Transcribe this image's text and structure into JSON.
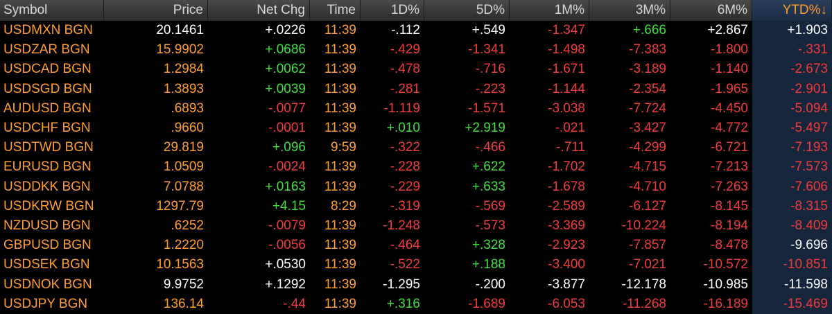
{
  "table": {
    "header": [
      "Symbol",
      "Price",
      "Net Chg",
      "Time",
      "1D%",
      "5D%",
      "1M%",
      "3M%",
      "6M%",
      "YTD%↓"
    ],
    "header_colors": [
      "#d8d8d8",
      "#d8d8d8",
      "#d8d8d8",
      "#d8d8d8",
      "#d8d8d8",
      "#d8d8d8",
      "#d8d8d8",
      "#d8d8d8",
      "#d8d8d8",
      "#ff9d2e"
    ],
    "rows": [
      [
        "USDMXN BGN",
        "20.1461",
        "+.0226",
        "11:39",
        "-.112",
        "+.549",
        "-1.347",
        "+.666",
        "+2.867",
        "+1.903"
      ],
      [
        "USDZAR BGN",
        "15.9902",
        "+.0686",
        "11:39",
        "-.429",
        "-1.341",
        "-1.498",
        "-7.383",
        "-1.800",
        "-.331"
      ],
      [
        "USDCAD BGN",
        "1.2984",
        "+.0062",
        "11:39",
        "-.478",
        "-.716",
        "-1.671",
        "-3.189",
        "-1.140",
        "-2.673"
      ],
      [
        "USDSGD BGN",
        "1.3893",
        "+.0039",
        "11:39",
        "-.281",
        "-.223",
        "-1.144",
        "-2.354",
        "-1.965",
        "-2.901"
      ],
      [
        "AUDUSD BGN",
        ".6893",
        "-.0077",
        "11:39",
        "-1.119",
        "-1.571",
        "-3.038",
        "-7.724",
        "-4.450",
        "-5.094"
      ],
      [
        "USDCHF BGN",
        ".9660",
        "-.0001",
        "11:39",
        "+.010",
        "+2.919",
        "-.021",
        "-3.427",
        "-4.772",
        "-5.497"
      ],
      [
        "USDTWD BGN",
        "29.819",
        "+.096",
        "9:59",
        "-.322",
        "-.466",
        "-.711",
        "-4.299",
        "-6.721",
        "-7.193"
      ],
      [
        "EURUSD BGN",
        "1.0509",
        "-.0024",
        "11:39",
        "-.228",
        "+.622",
        "-1.702",
        "-4.715",
        "-7.213",
        "-7.573"
      ],
      [
        "USDDKK BGN",
        "7.0788",
        "+.0163",
        "11:39",
        "-.229",
        "+.633",
        "-1.678",
        "-4.710",
        "-7.263",
        "-7.606"
      ],
      [
        "USDKRW BGN",
        "1297.79",
        "+4.15",
        "8:29",
        "-.319",
        "-.569",
        "-2.589",
        "-6.127",
        "-8.145",
        "-8.315"
      ],
      [
        "NZDUSD BGN",
        ".6252",
        "-.0079",
        "11:39",
        "-1.248",
        "-.573",
        "-3.369",
        "-10.224",
        "-8.194",
        "-8.409"
      ],
      [
        "GBPUSD BGN",
        "1.2220",
        "-.0056",
        "11:39",
        "-.464",
        "+.328",
        "-2.923",
        "-7.857",
        "-8.478",
        "-9.696"
      ],
      [
        "USDSEK BGN",
        "10.1563",
        "+.0530",
        "11:39",
        "-.522",
        "+.188",
        "-3.400",
        "-7.021",
        "-10.572",
        "-10.851"
      ],
      [
        "USDNOK BGN",
        "9.9752",
        "+.1292",
        "11:39",
        "-1.295",
        "-.200",
        "-3.877",
        "-12.178",
        "-10.985",
        "-11.598"
      ],
      [
        "USDJPY BGN",
        "136.14",
        "-.44",
        "11:39",
        "+.316",
        "-1.689",
        "-6.053",
        "-11.268",
        "-16.189",
        "-15.469"
      ]
    ],
    "colors": [
      [
        "#ff9d2e",
        "#ffffff",
        "#ffffff",
        "#ff9d2e",
        "#ffffff",
        "#ffffff",
        "#f23b3b",
        "#3ee03e",
        "#ffffff",
        "#ffffff"
      ],
      [
        "#ff9d2e",
        "#ff9d2e",
        "#3ee03e",
        "#ff9d2e",
        "#f23b3b",
        "#f23b3b",
        "#f23b3b",
        "#f23b3b",
        "#f23b3b",
        "#f23b3b"
      ],
      [
        "#ff9d2e",
        "#ff9d2e",
        "#3ee03e",
        "#ff9d2e",
        "#f23b3b",
        "#f23b3b",
        "#f23b3b",
        "#f23b3b",
        "#f23b3b",
        "#f23b3b"
      ],
      [
        "#ff9d2e",
        "#ff9d2e",
        "#3ee03e",
        "#ff9d2e",
        "#f23b3b",
        "#f23b3b",
        "#f23b3b",
        "#f23b3b",
        "#f23b3b",
        "#f23b3b"
      ],
      [
        "#ff9d2e",
        "#ff9d2e",
        "#f23b3b",
        "#ff9d2e",
        "#f23b3b",
        "#f23b3b",
        "#f23b3b",
        "#f23b3b",
        "#f23b3b",
        "#f23b3b"
      ],
      [
        "#ff9d2e",
        "#ff9d2e",
        "#f23b3b",
        "#ff9d2e",
        "#3ee03e",
        "#3ee03e",
        "#f23b3b",
        "#f23b3b",
        "#f23b3b",
        "#f23b3b"
      ],
      [
        "#ff9d2e",
        "#ff9d2e",
        "#3ee03e",
        "#ff9d2e",
        "#f23b3b",
        "#f23b3b",
        "#f23b3b",
        "#f23b3b",
        "#f23b3b",
        "#f23b3b"
      ],
      [
        "#ff9d2e",
        "#ff9d2e",
        "#f23b3b",
        "#ff9d2e",
        "#f23b3b",
        "#3ee03e",
        "#f23b3b",
        "#f23b3b",
        "#f23b3b",
        "#f23b3b"
      ],
      [
        "#ff9d2e",
        "#ff9d2e",
        "#3ee03e",
        "#ff9d2e",
        "#f23b3b",
        "#3ee03e",
        "#f23b3b",
        "#f23b3b",
        "#f23b3b",
        "#f23b3b"
      ],
      [
        "#ff9d2e",
        "#ff9d2e",
        "#3ee03e",
        "#ff9d2e",
        "#f23b3b",
        "#f23b3b",
        "#f23b3b",
        "#f23b3b",
        "#f23b3b",
        "#f23b3b"
      ],
      [
        "#ff9d2e",
        "#ff9d2e",
        "#f23b3b",
        "#ff9d2e",
        "#f23b3b",
        "#f23b3b",
        "#f23b3b",
        "#f23b3b",
        "#f23b3b",
        "#f23b3b"
      ],
      [
        "#ff9d2e",
        "#ff9d2e",
        "#f23b3b",
        "#ff9d2e",
        "#f23b3b",
        "#3ee03e",
        "#f23b3b",
        "#f23b3b",
        "#f23b3b",
        "#ffffff"
      ],
      [
        "#ff9d2e",
        "#ff9d2e",
        "#ffffff",
        "#ff9d2e",
        "#f23b3b",
        "#3ee03e",
        "#f23b3b",
        "#f23b3b",
        "#f23b3b",
        "#f23b3b"
      ],
      [
        "#ff9d2e",
        "#ffffff",
        "#ffffff",
        "#ff9d2e",
        "#ffffff",
        "#ffffff",
        "#ffffff",
        "#ffffff",
        "#ffffff",
        "#ffffff"
      ],
      [
        "#ff9d2e",
        "#ff9d2e",
        "#f23b3b",
        "#ff9d2e",
        "#3ee03e",
        "#f23b3b",
        "#f23b3b",
        "#f23b3b",
        "#f23b3b",
        "#f23b3b"
      ]
    ]
  }
}
